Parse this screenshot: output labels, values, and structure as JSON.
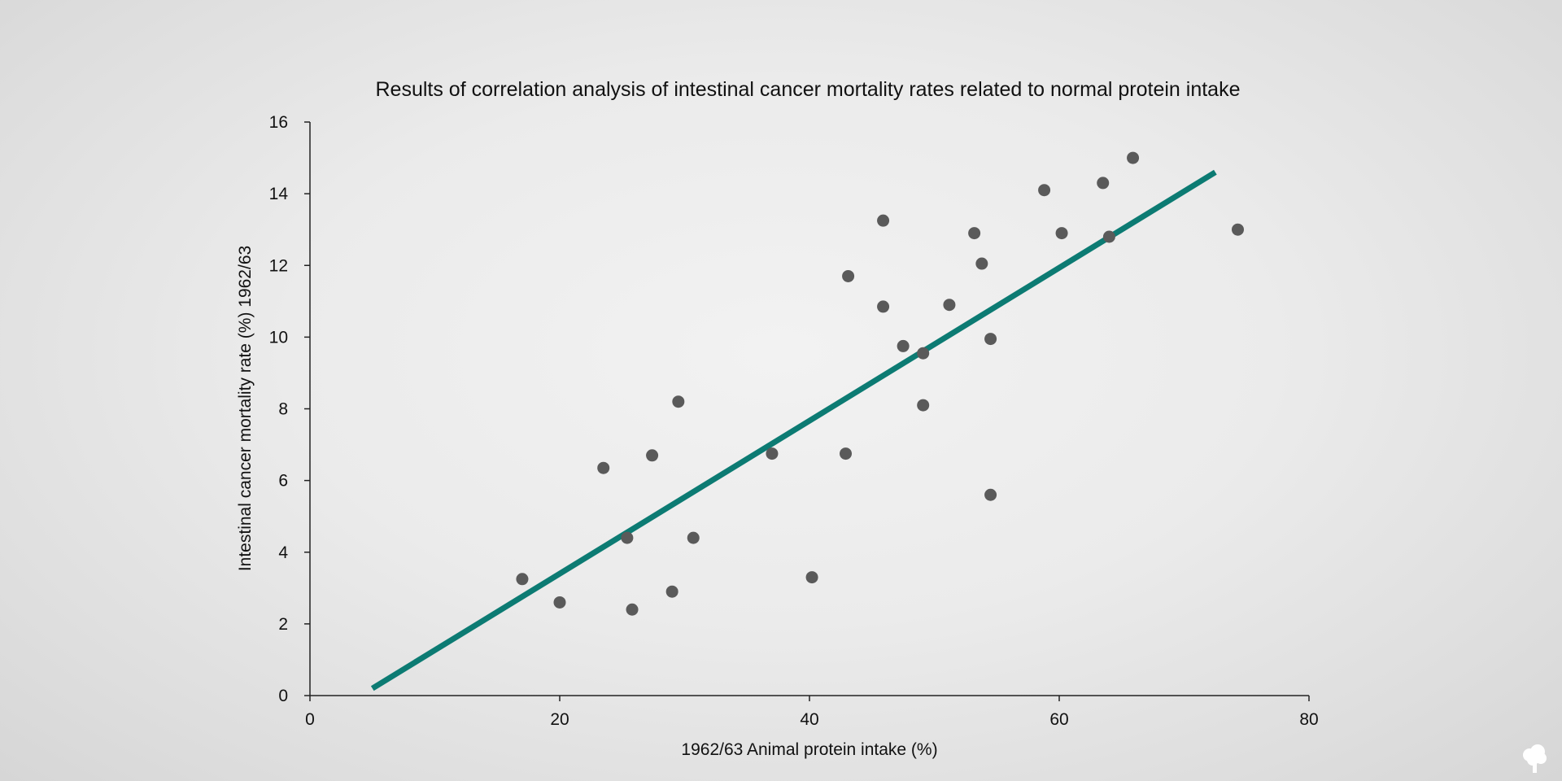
{
  "chart_data": {
    "type": "scatter",
    "title": "Results of correlation analysis of intestinal cancer mortality rates related to normal protein intake",
    "xlabel": "1962/63 Animal protein intake (%)",
    "ylabel": "Intestinal cancer mortality rate (%) 1962/63",
    "xlim": [
      0,
      80
    ],
    "ylim": [
      0,
      16
    ],
    "xticks": [
      0,
      20,
      40,
      60,
      80
    ],
    "yticks": [
      0,
      2,
      4,
      6,
      8,
      10,
      12,
      14,
      16
    ],
    "grid": false,
    "colors": {
      "points": "#5a5a5a",
      "trend": "#0c7b73"
    },
    "points": [
      {
        "x": 17.0,
        "y": 3.25
      },
      {
        "x": 20.0,
        "y": 2.6
      },
      {
        "x": 23.5,
        "y": 6.35
      },
      {
        "x": 25.4,
        "y": 4.4
      },
      {
        "x": 25.8,
        "y": 2.4
      },
      {
        "x": 27.4,
        "y": 6.7
      },
      {
        "x": 29.0,
        "y": 2.9
      },
      {
        "x": 29.5,
        "y": 8.2
      },
      {
        "x": 30.7,
        "y": 4.4
      },
      {
        "x": 37.0,
        "y": 6.75
      },
      {
        "x": 40.2,
        "y": 3.3
      },
      {
        "x": 42.9,
        "y": 6.75
      },
      {
        "x": 43.1,
        "y": 11.7
      },
      {
        "x": 45.9,
        "y": 13.25
      },
      {
        "x": 45.9,
        "y": 10.85
      },
      {
        "x": 47.5,
        "y": 9.75
      },
      {
        "x": 49.1,
        "y": 9.55
      },
      {
        "x": 49.1,
        "y": 8.1
      },
      {
        "x": 51.2,
        "y": 10.9
      },
      {
        "x": 53.2,
        "y": 12.9
      },
      {
        "x": 53.8,
        "y": 12.05
      },
      {
        "x": 54.5,
        "y": 9.95
      },
      {
        "x": 54.5,
        "y": 5.6
      },
      {
        "x": 58.8,
        "y": 14.1
      },
      {
        "x": 60.2,
        "y": 12.9
      },
      {
        "x": 63.5,
        "y": 14.3
      },
      {
        "x": 64.0,
        "y": 12.8
      },
      {
        "x": 65.9,
        "y": 15.0
      },
      {
        "x": 74.3,
        "y": 13.0
      }
    ],
    "trendline": {
      "x": [
        5.0,
        72.5
      ],
      "y": [
        0.2,
        14.6
      ]
    }
  },
  "logo_icon": "tree-icon"
}
